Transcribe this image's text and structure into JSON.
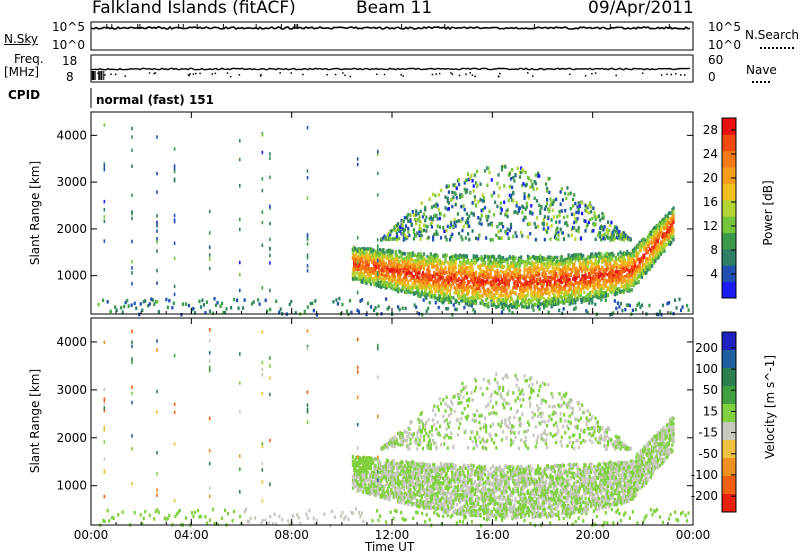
{
  "header": {
    "station": "Falkland Islands (fitACF)",
    "beam": "Beam 11",
    "date": "09/Apr/2011"
  },
  "side_panels": {
    "nsky_label": "N.Sky",
    "nsky_ticks": [
      "10^5",
      "10^0"
    ],
    "nsearch_label": "N.Search",
    "freq_label_top": "Freq.",
    "freq_label_bottom": "[MHz]",
    "freq_ticks": [
      "18",
      "8"
    ],
    "nave_label": "Nave",
    "nave_ticks": [
      "60",
      "0"
    ],
    "right_nsky_ticks": [
      "10^5",
      "10^0"
    ],
    "cpid_label": "CPID",
    "cpid_value": "normal (fast) 151"
  },
  "chart_data": [
    {
      "type": "heatmap",
      "title": "",
      "xlabel": "",
      "ylabel": "Slant Range [km]",
      "x_ticks": [
        "00:00",
        "04:00",
        "08:00",
        "12:00",
        "16:00",
        "20:00",
        "00:00"
      ],
      "xlim_hours": [
        0,
        24
      ],
      "y_ticks": [
        1000,
        2000,
        3000,
        4000
      ],
      "ylim": [
        180,
        4500
      ],
      "colorbar": {
        "label": "Power [dB]",
        "ticks": [
          4,
          8,
          12,
          16,
          20,
          24,
          28
        ],
        "range": [
          0,
          30
        ],
        "colors": [
          "#1a1aff",
          "#1f4fb0",
          "#2e7f66",
          "#3c9a4c",
          "#76c63c",
          "#b3d433",
          "#f0c020",
          "#f59c18",
          "#f57a14",
          "#f04a10",
          "#e81010"
        ]
      }
    },
    {
      "type": "heatmap",
      "title": "",
      "xlabel": "Time UT",
      "ylabel": "Slant Range [km]",
      "x_ticks": [
        "00:00",
        "04:00",
        "08:00",
        "12:00",
        "16:00",
        "20:00",
        "00:00"
      ],
      "xlim_hours": [
        0,
        24
      ],
      "y_ticks": [
        1000,
        2000,
        3000,
        4000
      ],
      "ylim": [
        180,
        4500
      ],
      "colorbar": {
        "label": "Velocity [m s^-1]",
        "unit_sup": "-1",
        "ticks": [
          200,
          100,
          50,
          15,
          -15,
          -50,
          -100,
          -200
        ],
        "range": [
          -250,
          250
        ],
        "colors": [
          "#2020c0",
          "#2060a0",
          "#2e7f50",
          "#40a040",
          "#80d040",
          "#c8c8c0",
          "#f0c040",
          "#f09020",
          "#f06010",
          "#e82010"
        ]
      }
    }
  ]
}
